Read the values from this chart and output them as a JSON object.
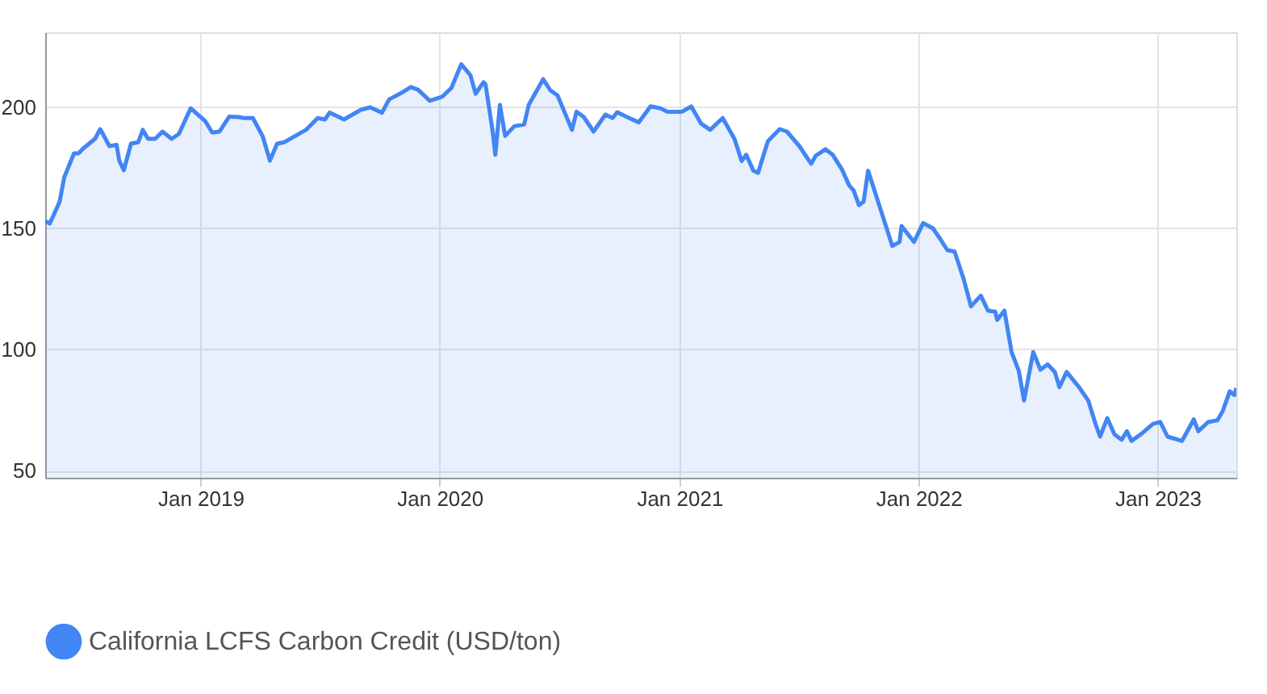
{
  "chart_data": {
    "type": "area",
    "legend": "bottom",
    "grid": true,
    "marker": "none",
    "line_style": "solid",
    "xlim": [
      "2018-05-09",
      "2023-05-01"
    ],
    "ylim": [
      47,
      231
    ],
    "xticks": [
      {
        "value": "2019-01-01",
        "label": "Jan 2019"
      },
      {
        "value": "2020-01-01",
        "label": "Jan 2020"
      },
      {
        "value": "2021-01-01",
        "label": "Jan 2021"
      },
      {
        "value": "2022-01-01",
        "label": "Jan 2022"
      },
      {
        "value": "2023-01-01",
        "label": "Jan 2023"
      }
    ],
    "yticks": [
      50,
      100,
      150,
      200
    ],
    "x": [
      "2018-05-09",
      "2018-05-16",
      "2018-05-31",
      "2018-06-07",
      "2018-06-22",
      "2018-06-29",
      "2018-07-06",
      "2018-07-24",
      "2018-08-01",
      "2018-08-15",
      "2018-08-26",
      "2018-08-30",
      "2018-09-06",
      "2018-09-17",
      "2018-09-28",
      "2018-10-05",
      "2018-10-13",
      "2018-10-24",
      "2018-11-04",
      "2018-11-18",
      "2018-11-29",
      "2018-12-17",
      "2019-01-08",
      "2019-01-19",
      "2019-01-30",
      "2019-02-14",
      "2019-02-28",
      "2019-03-08",
      "2019-03-22",
      "2019-04-06",
      "2019-04-17",
      "2019-04-28",
      "2019-05-09",
      "2019-05-27",
      "2019-06-11",
      "2019-06-29",
      "2019-07-10",
      "2019-07-17",
      "2019-08-08",
      "2019-09-03",
      "2019-09-17",
      "2019-10-05",
      "2019-10-16",
      "2019-11-04",
      "2019-11-18",
      "2019-11-29",
      "2019-12-17",
      "2020-01-05",
      "2020-01-19",
      "2020-02-03",
      "2020-02-17",
      "2020-02-25",
      "2020-03-08",
      "2020-03-11",
      "2020-03-22",
      "2020-03-26",
      "2020-04-02",
      "2020-04-10",
      "2020-04-24",
      "2020-05-09",
      "2020-05-16",
      "2020-06-07",
      "2020-06-18",
      "2020-06-29",
      "2020-07-10",
      "2020-07-21",
      "2020-07-28",
      "2020-08-08",
      "2020-08-23",
      "2020-09-10",
      "2020-09-21",
      "2020-09-28",
      "2020-10-13",
      "2020-10-31",
      "2020-11-18",
      "2020-12-03",
      "2020-12-14",
      "2021-01-05",
      "2021-01-19",
      "2021-02-03",
      "2021-02-17",
      "2021-03-08",
      "2021-03-26",
      "2021-04-06",
      "2021-04-13",
      "2021-04-24",
      "2021-05-01",
      "2021-05-16",
      "2021-06-03",
      "2021-06-14",
      "2021-07-03",
      "2021-07-21",
      "2021-07-28",
      "2021-08-12",
      "2021-08-23",
      "2021-09-06",
      "2021-09-17",
      "2021-09-24",
      "2021-10-02",
      "2021-10-09",
      "2021-10-16",
      "2021-11-04",
      "2021-11-22",
      "2021-12-03",
      "2021-12-06",
      "2021-12-25",
      "2022-01-08",
      "2022-01-23",
      "2022-02-03",
      "2022-02-14",
      "2022-02-25",
      "2022-03-11",
      "2022-03-22",
      "2022-04-06",
      "2022-04-17",
      "2022-04-28",
      "2022-05-01",
      "2022-05-12",
      "2022-05-23",
      "2022-06-03",
      "2022-06-11",
      "2022-06-25",
      "2022-07-06",
      "2022-07-17",
      "2022-07-28",
      "2022-08-04",
      "2022-08-15",
      "2022-09-03",
      "2022-09-17",
      "2022-09-28",
      "2022-10-05",
      "2022-10-16",
      "2022-10-27",
      "2022-11-07",
      "2022-11-15",
      "2022-11-22",
      "2022-12-06",
      "2022-12-25",
      "2023-01-05",
      "2023-01-16",
      "2023-02-07",
      "2023-02-14",
      "2023-02-25",
      "2023-03-04",
      "2023-03-19",
      "2023-04-02",
      "2023-04-10",
      "2023-04-21",
      "2023-04-28",
      "2023-05-01"
    ],
    "series": [
      {
        "name": "California LCFS Carbon Credit (USD/ton)",
        "color": "#4285f4",
        "values": [
          153,
          152,
          161,
          171,
          181,
          181,
          183,
          187,
          191,
          184,
          184.5,
          178,
          174,
          185,
          185.6,
          190.7,
          187,
          187,
          190,
          187,
          189,
          199.6,
          194.4,
          189.6,
          190,
          196.2,
          196,
          195.6,
          195.6,
          188,
          178,
          185,
          185.6,
          188.4,
          190.7,
          195.6,
          195,
          197.8,
          195,
          199,
          200,
          197.8,
          203.3,
          206,
          208.4,
          207.3,
          202.7,
          204.4,
          208,
          217.8,
          213.3,
          205.6,
          210.4,
          209.6,
          190,
          180.4,
          201,
          188.2,
          192.2,
          192.9,
          201,
          211.6,
          207,
          204.9,
          197.8,
          190.7,
          198.2,
          196,
          190,
          197,
          195.6,
          198,
          196,
          193.8,
          200.4,
          199.6,
          198.2,
          198.2,
          200.4,
          193.3,
          190.7,
          195.6,
          187,
          177.8,
          180.4,
          173.8,
          172.9,
          186,
          191,
          190,
          184,
          176.7,
          180,
          182.7,
          180.4,
          174.4,
          167.8,
          165.6,
          159.6,
          161,
          173.8,
          157.8,
          142.7,
          144.4,
          151,
          144.4,
          152.2,
          150,
          145.6,
          141,
          140.4,
          128.9,
          117.8,
          122.2,
          116,
          115.6,
          112.2,
          116,
          98.9,
          91.1,
          78.9,
          98.9,
          91.6,
          93.8,
          90.7,
          84.4,
          90.7,
          84.4,
          78.9,
          69.3,
          64,
          71.6,
          64.9,
          62.7,
          66.2,
          62.2,
          64.9,
          69.3,
          70,
          64,
          62.2,
          65.6,
          71.1,
          66.2,
          70,
          70.7,
          74.4,
          82.7,
          81.1,
          84
        ]
      }
    ]
  }
}
